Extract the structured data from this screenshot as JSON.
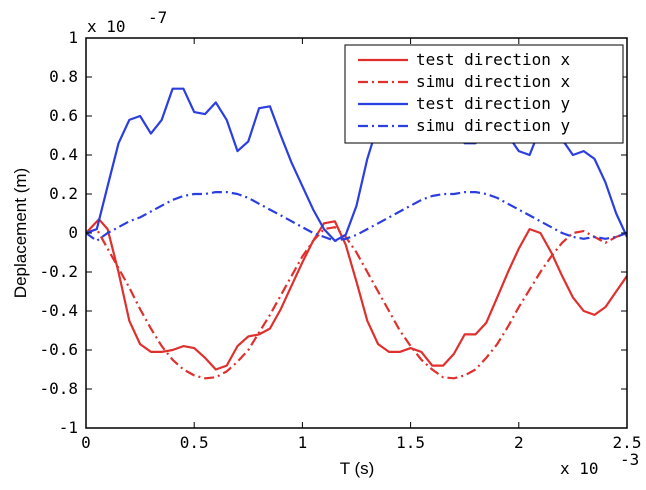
{
  "chart_data": {
    "type": "line",
    "title": "",
    "xlabel": "T (s)",
    "ylabel": "Deplacement (m)",
    "x_multiplier_label": "x 10",
    "x_multiplier_exp": "-3",
    "y_multiplier_label": "x 10",
    "y_multiplier_exp": "-7",
    "xlim": [
      0,
      2.5
    ],
    "ylim": [
      -1,
      1
    ],
    "x_ticks": [
      0,
      0.5,
      1,
      1.5,
      2,
      2.5
    ],
    "x_tick_labels": [
      "0",
      "0.5",
      "1",
      "1.5",
      "2",
      "2.5"
    ],
    "y_ticks": [
      -1,
      -0.8,
      -0.6,
      -0.4,
      -0.2,
      0,
      0.2,
      0.4,
      0.6,
      0.8,
      1
    ],
    "y_tick_labels": [
      "-1",
      "-0.8",
      "-0.6",
      "-0.4",
      "-0.2",
      "0",
      "0.2",
      "0.4",
      "0.6",
      "0.8",
      "1"
    ],
    "grid": false,
    "legend_position": "top-right",
    "series": [
      {
        "name": "test direction x",
        "color": "#e0302e",
        "style": "solid",
        "x": [
          0,
          0.06,
          0.1,
          0.15,
          0.2,
          0.25,
          0.3,
          0.35,
          0.4,
          0.45,
          0.5,
          0.55,
          0.6,
          0.65,
          0.7,
          0.75,
          0.8,
          0.85,
          0.9,
          0.95,
          1.0,
          1.05,
          1.1,
          1.15,
          1.2,
          1.25,
          1.3,
          1.35,
          1.4,
          1.45,
          1.5,
          1.55,
          1.6,
          1.65,
          1.7,
          1.75,
          1.8,
          1.85,
          1.9,
          1.95,
          2.0,
          2.05,
          2.1,
          2.15,
          2.2,
          2.25,
          2.3,
          2.35,
          2.4,
          2.45,
          2.5
        ],
        "y": [
          0,
          0.07,
          0.02,
          -0.2,
          -0.45,
          -0.57,
          -0.61,
          -0.61,
          -0.6,
          -0.58,
          -0.59,
          -0.64,
          -0.7,
          -0.68,
          -0.58,
          -0.53,
          -0.52,
          -0.49,
          -0.39,
          -0.27,
          -0.15,
          -0.04,
          0.05,
          0.06,
          -0.06,
          -0.25,
          -0.45,
          -0.57,
          -0.61,
          -0.61,
          -0.59,
          -0.61,
          -0.68,
          -0.68,
          -0.62,
          -0.52,
          -0.52,
          -0.46,
          -0.33,
          -0.2,
          -0.08,
          0.02,
          0.0,
          -0.1,
          -0.22,
          -0.33,
          -0.4,
          -0.42,
          -0.38,
          -0.3,
          -0.22
        ]
      },
      {
        "name": "simu direction x",
        "color": "#e0302e",
        "style": "dashdot",
        "x": [
          0,
          0.05,
          0.1,
          0.15,
          0.2,
          0.25,
          0.3,
          0.35,
          0.4,
          0.45,
          0.5,
          0.55,
          0.6,
          0.65,
          0.7,
          0.75,
          0.8,
          0.85,
          0.9,
          0.95,
          1.0,
          1.05,
          1.1,
          1.15,
          1.2,
          1.25,
          1.3,
          1.35,
          1.4,
          1.45,
          1.5,
          1.55,
          1.6,
          1.65,
          1.7,
          1.75,
          1.8,
          1.85,
          1.9,
          1.95,
          2.0,
          2.05,
          2.1,
          2.15,
          2.2,
          2.25,
          2.3,
          2.35,
          2.4,
          2.45,
          2.5
        ],
        "y": [
          0,
          0.02,
          -0.08,
          -0.18,
          -0.28,
          -0.39,
          -0.49,
          -0.58,
          -0.65,
          -0.7,
          -0.73,
          -0.745,
          -0.74,
          -0.71,
          -0.66,
          -0.6,
          -0.51,
          -0.42,
          -0.32,
          -0.22,
          -0.12,
          -0.04,
          0.02,
          0.03,
          -0.02,
          -0.1,
          -0.2,
          -0.3,
          -0.4,
          -0.5,
          -0.58,
          -0.65,
          -0.7,
          -0.74,
          -0.745,
          -0.73,
          -0.7,
          -0.64,
          -0.57,
          -0.48,
          -0.38,
          -0.29,
          -0.2,
          -0.12,
          -0.05,
          0.0,
          0.01,
          -0.02,
          -0.05,
          -0.02,
          0.0
        ]
      },
      {
        "name": "test direction y",
        "color": "#2b3ee0",
        "style": "solid",
        "x": [
          0,
          0.05,
          0.1,
          0.15,
          0.2,
          0.25,
          0.3,
          0.35,
          0.4,
          0.45,
          0.5,
          0.55,
          0.6,
          0.65,
          0.7,
          0.75,
          0.8,
          0.85,
          0.9,
          0.95,
          1.0,
          1.05,
          1.1,
          1.15,
          1.2,
          1.25,
          1.3,
          1.35,
          1.4,
          1.45,
          1.5,
          1.55,
          1.6,
          1.65,
          1.7,
          1.75,
          1.8,
          1.85,
          1.9,
          1.95,
          2.0,
          2.05,
          2.1,
          2.15,
          2.2,
          2.25,
          2.3,
          2.35,
          2.4,
          2.45,
          2.5
        ],
        "y": [
          0,
          0.02,
          0.24,
          0.46,
          0.58,
          0.6,
          0.51,
          0.58,
          0.74,
          0.74,
          0.62,
          0.61,
          0.67,
          0.58,
          0.42,
          0.47,
          0.64,
          0.65,
          0.5,
          0.36,
          0.24,
          0.12,
          0.02,
          -0.04,
          -0.01,
          0.14,
          0.38,
          0.56,
          0.62,
          0.6,
          0.52,
          0.5,
          0.6,
          0.62,
          0.56,
          0.46,
          0.46,
          0.58,
          0.58,
          0.5,
          0.42,
          0.4,
          0.54,
          0.58,
          0.48,
          0.4,
          0.42,
          0.38,
          0.26,
          0.1,
          -0.02
        ]
      },
      {
        "name": "simu direction y",
        "color": "#2b3ee0",
        "style": "dashdot",
        "x": [
          0,
          0.05,
          0.1,
          0.15,
          0.2,
          0.25,
          0.3,
          0.35,
          0.4,
          0.45,
          0.5,
          0.55,
          0.6,
          0.65,
          0.7,
          0.75,
          0.8,
          0.85,
          0.9,
          0.95,
          1.0,
          1.05,
          1.1,
          1.15,
          1.2,
          1.25,
          1.3,
          1.35,
          1.4,
          1.45,
          1.5,
          1.55,
          1.6,
          1.65,
          1.7,
          1.75,
          1.8,
          1.85,
          1.9,
          1.95,
          2.0,
          2.05,
          2.1,
          2.15,
          2.2,
          2.25,
          2.3,
          2.35,
          2.4,
          2.45,
          2.5
        ],
        "y": [
          0,
          -0.04,
          0.0,
          0.03,
          0.06,
          0.08,
          0.11,
          0.14,
          0.17,
          0.19,
          0.2,
          0.2,
          0.21,
          0.21,
          0.2,
          0.18,
          0.15,
          0.12,
          0.09,
          0.06,
          0.03,
          0.0,
          -0.02,
          -0.04,
          -0.03,
          -0.01,
          0.02,
          0.05,
          0.08,
          0.11,
          0.14,
          0.17,
          0.19,
          0.2,
          0.2,
          0.21,
          0.21,
          0.2,
          0.18,
          0.15,
          0.12,
          0.09,
          0.06,
          0.03,
          0.0,
          -0.02,
          -0.03,
          -0.02,
          -0.03,
          -0.02,
          0.0
        ]
      }
    ]
  }
}
